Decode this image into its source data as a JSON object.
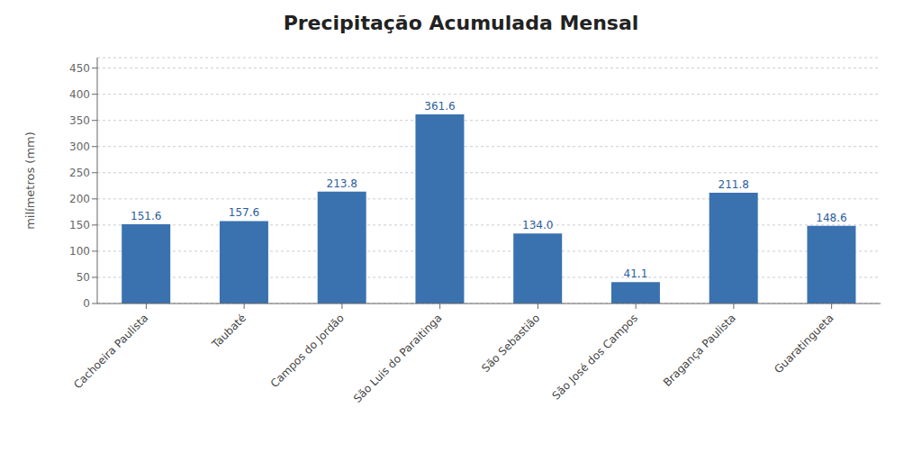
{
  "chart_data": {
    "type": "bar",
    "title": "Precipitação Acumulada Mensal",
    "ylabel": "milímetros (mm)",
    "categories": [
      "Cachoeira Paulista",
      "Taubaté",
      "Campos do Jordão",
      "São Luis do Paraitinga",
      "São Sebastião",
      "São José dos Campos",
      "Bragança Paulista",
      "Guaratingueta"
    ],
    "values": [
      151.6,
      157.6,
      213.8,
      361.6,
      134.0,
      41.1,
      211.8,
      148.6
    ],
    "value_labels": [
      "151.6",
      "157.6",
      "213.8",
      "361.6",
      "134.0",
      "41.1",
      "211.8",
      "148.6"
    ],
    "color": "#3A72B0",
    "ylim": [
      0,
      470
    ],
    "yticks": [
      0,
      50,
      100,
      150,
      200,
      250,
      300,
      350,
      400,
      450
    ],
    "grid": true,
    "data_labels": true
  }
}
